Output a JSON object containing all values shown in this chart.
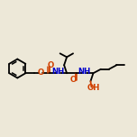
{
  "bg_color": "#ede8d8",
  "bond_color": "#000000",
  "oxygen_color": "#d04000",
  "nitrogen_color": "#0000cc",
  "line_width": 1.3,
  "figsize": [
    1.52,
    1.52
  ],
  "dpi": 100,
  "xlim": [
    0,
    15
  ],
  "ylim": [
    0,
    15
  ]
}
